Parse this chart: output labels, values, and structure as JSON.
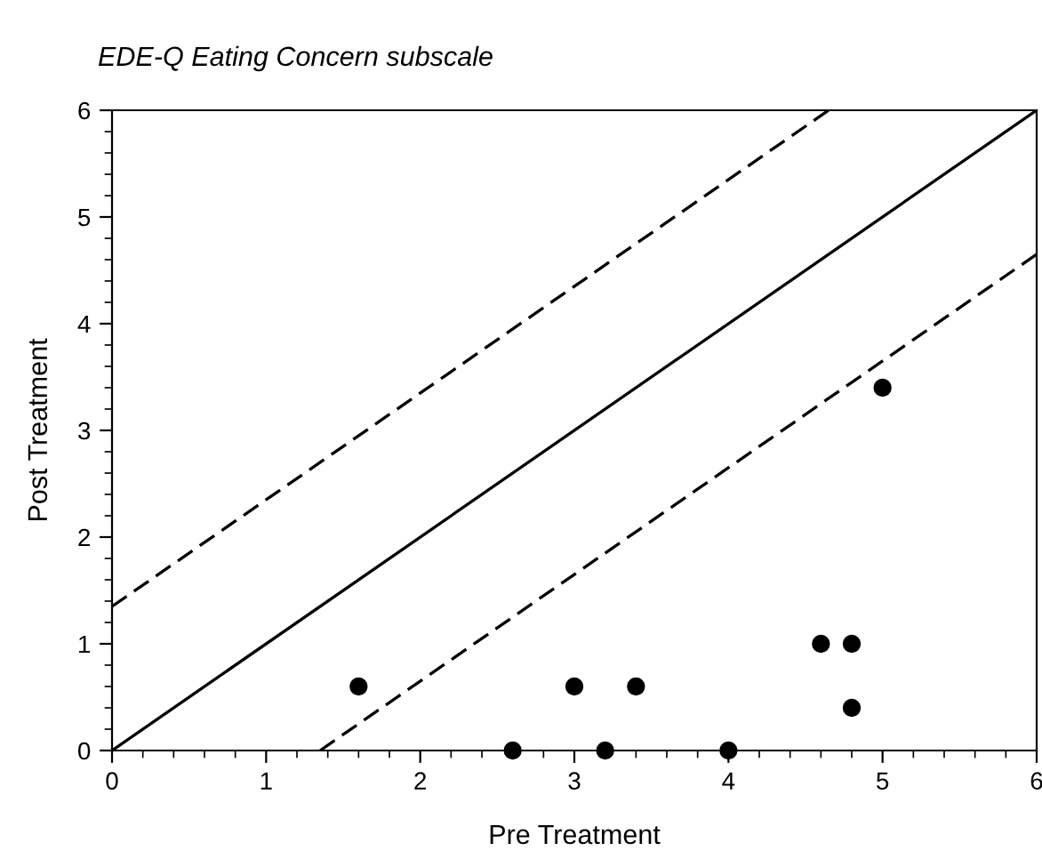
{
  "chart_data": {
    "type": "scatter",
    "title": "EDE-Q Eating Concern subscale",
    "xlabel": "Pre Treatment",
    "ylabel": "Post Treatment",
    "xlim": [
      0,
      6
    ],
    "ylim": [
      0,
      6
    ],
    "xticks": [
      0,
      1,
      2,
      3,
      4,
      5,
      6
    ],
    "yticks": [
      0,
      1,
      2,
      3,
      4,
      5,
      6
    ],
    "grid": false,
    "legend": false,
    "series": [
      {
        "color": "#000000",
        "marker": "circle",
        "x": [
          1.6,
          2.6,
          3.0,
          3.2,
          3.4,
          4.0,
          4.6,
          4.8,
          4.8,
          5.0
        ],
        "values": [
          0.6,
          0,
          0.6,
          0,
          0.6,
          0,
          1.0,
          1.0,
          0.4,
          3.4
        ]
      },
      {
        "type": "line",
        "color": "#000000",
        "line_style": "solid",
        "x": [
          0,
          6
        ],
        "values": [
          0,
          6
        ]
      },
      {
        "type": "line",
        "color": "#000000",
        "line_style": "dashed",
        "x": [
          0,
          4.65
        ],
        "values": [
          1.35,
          6
        ]
      },
      {
        "type": "line",
        "color": "#000000",
        "line_style": "dashed",
        "x": [
          1.35,
          6
        ],
        "values": [
          0,
          4.65
        ]
      }
    ]
  }
}
